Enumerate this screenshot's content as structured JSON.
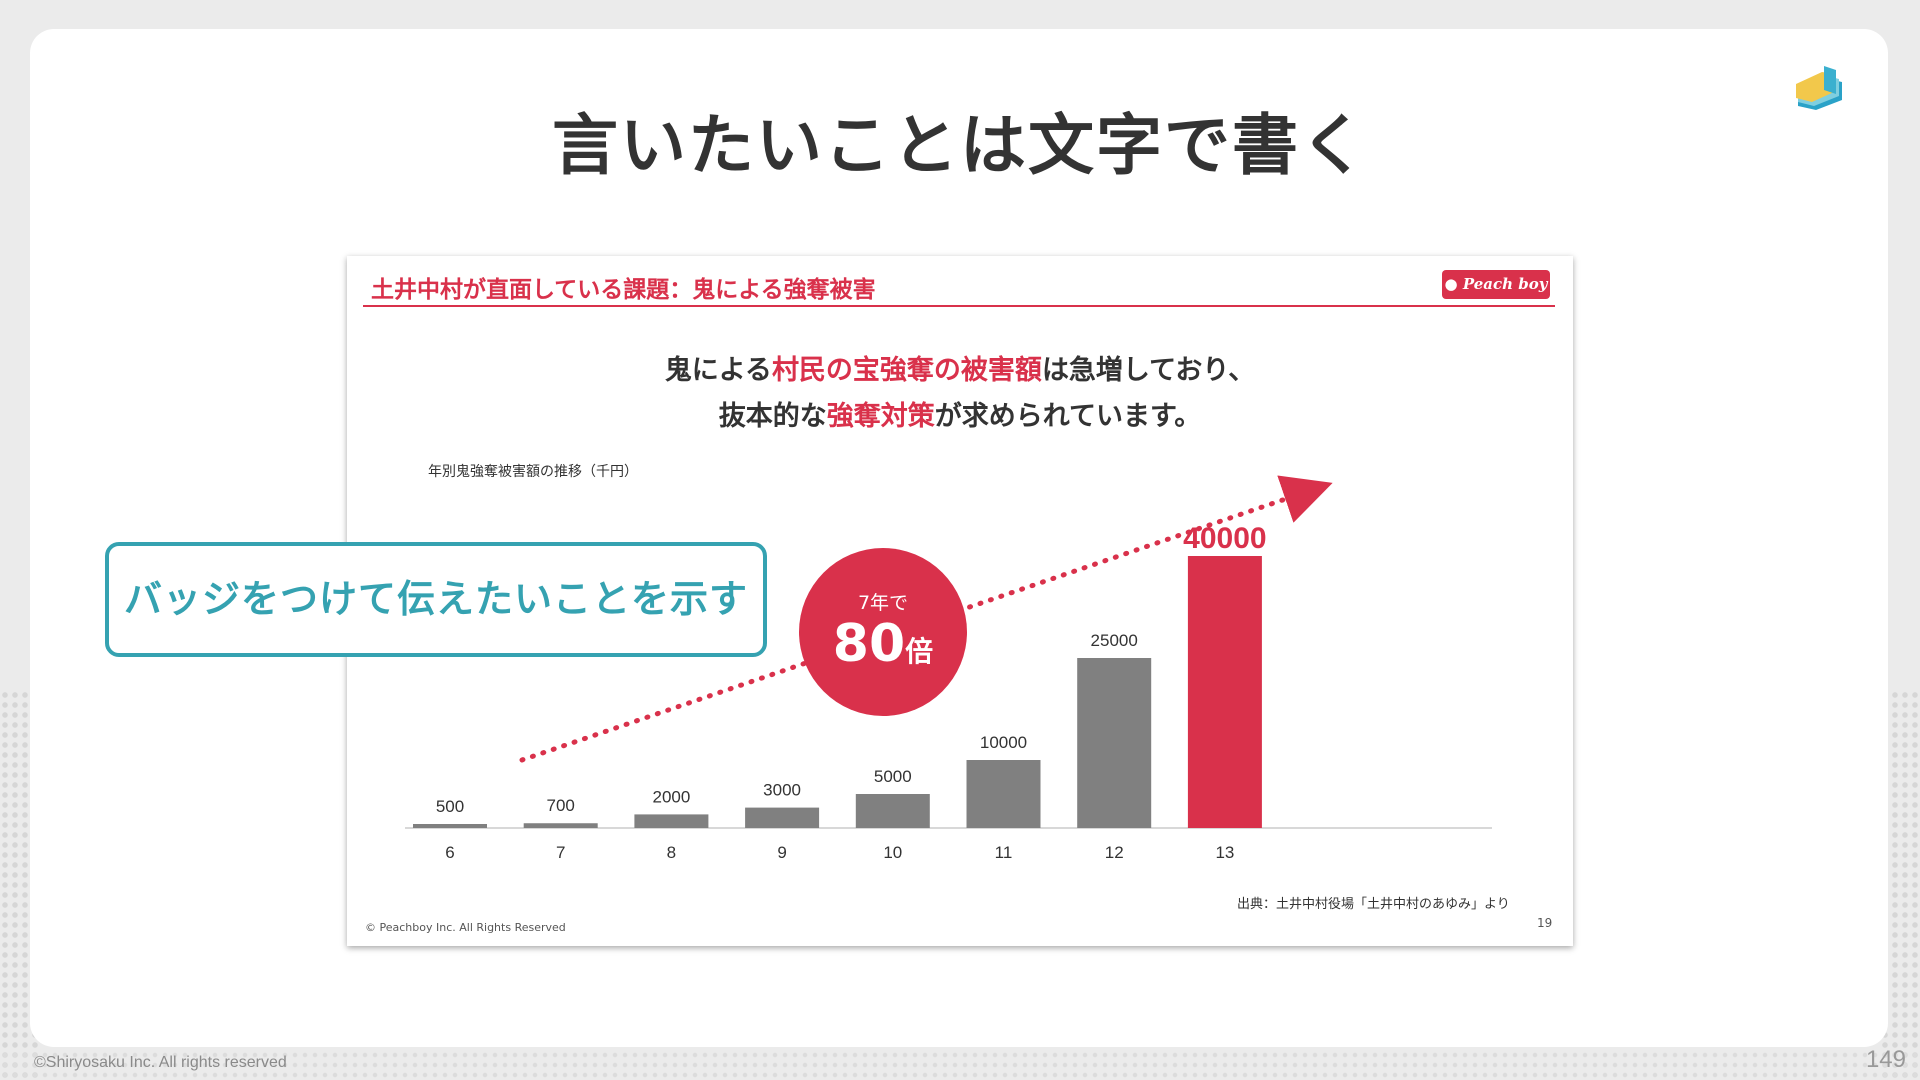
{
  "page": {
    "title": "言いたいことは文字で書く",
    "copyright": "©Shiryosaku Inc. All rights reserved",
    "page_number": "149"
  },
  "slide": {
    "header": "土井中村が直面している課題：鬼による強奪被害",
    "brand_badge": "Peach boy",
    "message_line1": {
      "pre": "鬼による",
      "hl": "村民の宝強奪の被害額",
      "post": "は急増しており、"
    },
    "message_line2": {
      "pre": "抜本的な",
      "hl": "強奪対策",
      "post": "が求められています。"
    },
    "chart_caption": "年別鬼強奪被害額の推移（千円）",
    "badge_top": "7年で",
    "badge_num": "80",
    "badge_unit": "倍",
    "source": "出典：土井中村役場「土井中村のあゆみ」より",
    "footer_copy": "© Peachboy Inc. All Rights Reserved",
    "slide_number": "19"
  },
  "callout": {
    "text": "バッジをつけて伝えたいことを示す"
  },
  "colors": {
    "accent": "#d9314b",
    "bar": "#808080",
    "callout": "#35a2b1"
  },
  "chart_data": {
    "type": "bar",
    "categories": [
      "6",
      "7",
      "8",
      "9",
      "10",
      "11",
      "12",
      "13"
    ],
    "values": [
      500,
      700,
      2000,
      3000,
      5000,
      10000,
      25000,
      40000
    ],
    "highlight_index": 7,
    "title": "年別鬼強奪被害額の推移（千円）",
    "xlabel": "",
    "ylabel": "",
    "grid": false
  }
}
